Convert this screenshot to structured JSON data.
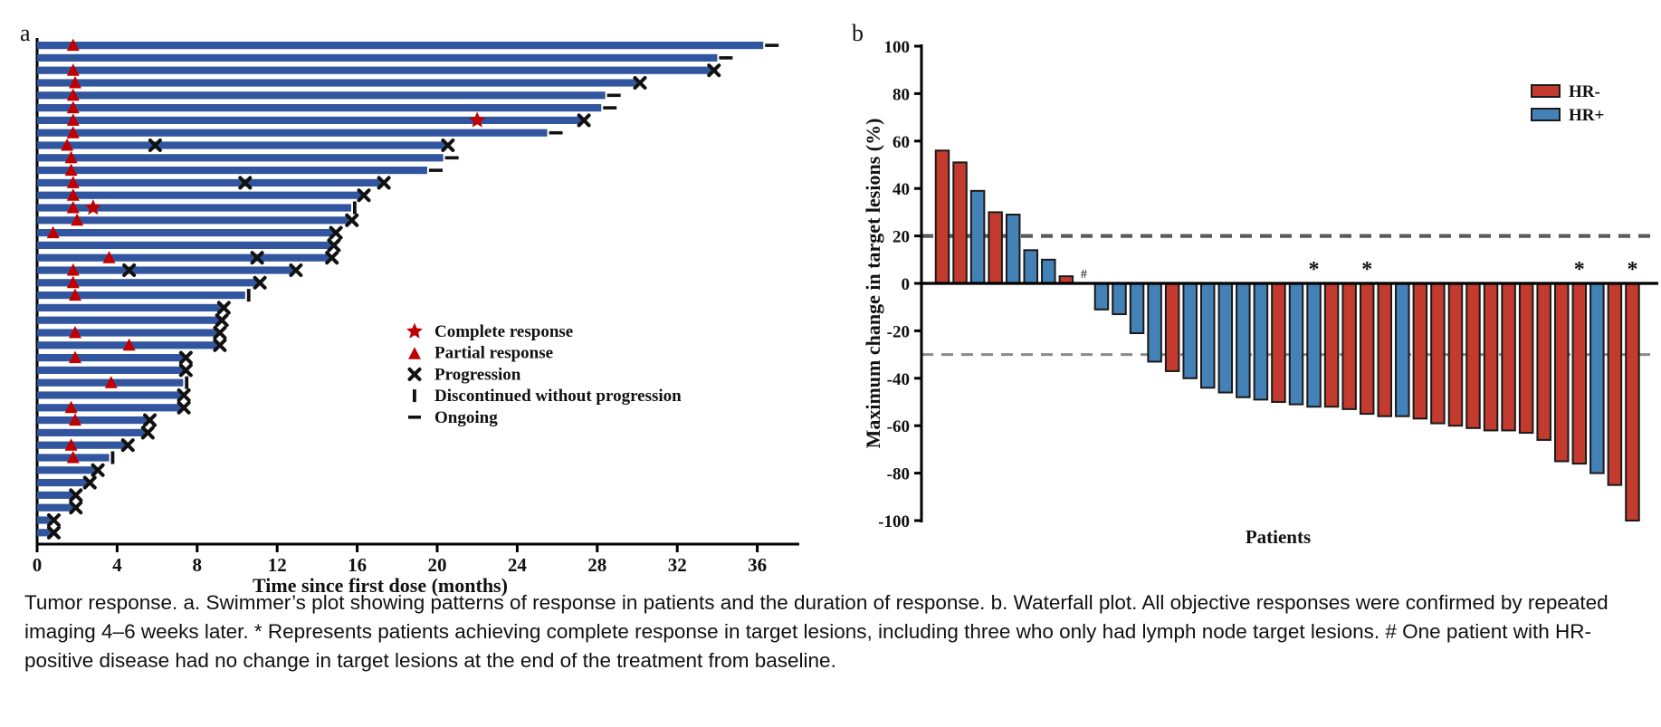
{
  "figure": {
    "panel_a_label": "a",
    "panel_b_label": "b",
    "caption": "Tumor response. a. Swimmer’s plot showing patterns of response in patients and the duration of response. b. Waterfall plot. All objective responses were confirmed by repeated imaging 4–6 weeks later. * Represents patients achieving complete response in target lesions, including three who only had lymph node target lesions. # One patient with HR-positive disease had no change in target lesions at the end of the treatment from baseline."
  },
  "chart_data": [
    {
      "type": "bar",
      "subtype": "swimmer",
      "xlabel": "Time since first dose (months)",
      "xlim": [
        0,
        38
      ],
      "xticks": [
        0,
        4,
        8,
        12,
        16,
        20,
        24,
        28,
        32,
        36
      ],
      "bar_color": "#31569f",
      "marker_red": "#c00000",
      "marker_black": "#111111",
      "legend": [
        {
          "symbol": "star",
          "label": "Complete response"
        },
        {
          "symbol": "triangle",
          "label": "Partial response"
        },
        {
          "symbol": "x",
          "label": "Progression"
        },
        {
          "symbol": "vbar",
          "label": "Discontinued without progression"
        },
        {
          "symbol": "dash",
          "label": "Ongoing"
        }
      ],
      "patients": [
        {
          "duration": 36.3,
          "pr": 1.8,
          "end": "ongoing"
        },
        {
          "duration": 34.0,
          "end": "ongoing"
        },
        {
          "duration": 33.7,
          "pr": 1.8,
          "end": "progression"
        },
        {
          "duration": 30.0,
          "pr": 1.9,
          "end": "progression"
        },
        {
          "duration": 28.4,
          "pr": 1.8,
          "end": "ongoing"
        },
        {
          "duration": 28.2,
          "pr": 1.8,
          "end": "ongoing"
        },
        {
          "duration": 27.2,
          "pr": 1.8,
          "cr": 22.0,
          "end": "progression"
        },
        {
          "duration": 25.5,
          "pr": 1.8,
          "end": "ongoing"
        },
        {
          "duration": 20.4,
          "pr": 1.5,
          "x_mid": [
            5.9
          ],
          "end": "progression"
        },
        {
          "duration": 20.3,
          "pr": 1.7,
          "end": "ongoing"
        },
        {
          "duration": 19.5,
          "pr": 1.7,
          "end": "ongoing"
        },
        {
          "duration": 17.2,
          "pr": 1.8,
          "x_mid": [
            10.4
          ],
          "end": "progression"
        },
        {
          "duration": 16.2,
          "pr": 1.8,
          "end": "progression"
        },
        {
          "duration": 15.7,
          "pr": 1.8,
          "cr": 2.8,
          "end": "discontinued"
        },
        {
          "duration": 15.6,
          "pr": 2.0,
          "end": "progression"
        },
        {
          "duration": 14.8,
          "pr": 0.8,
          "end": "progression"
        },
        {
          "duration": 14.7,
          "end": "progression"
        },
        {
          "duration": 14.6,
          "pr": 3.6,
          "x_mid": [
            11.0
          ],
          "end": "progression"
        },
        {
          "duration": 12.8,
          "pr": 1.8,
          "x_mid": [
            4.6
          ],
          "end": "progression"
        },
        {
          "duration": 11.0,
          "pr": 1.8,
          "end": "progression"
        },
        {
          "duration": 10.4,
          "pr": 1.9,
          "end": "discontinued"
        },
        {
          "duration": 9.2,
          "end": "progression"
        },
        {
          "duration": 9.1,
          "end": "progression"
        },
        {
          "duration": 9.0,
          "pr": 1.9,
          "end": "progression"
        },
        {
          "duration": 9.0,
          "pr": 4.6,
          "end": "progression"
        },
        {
          "duration": 7.3,
          "pr": 1.9,
          "end": "progression"
        },
        {
          "duration": 7.3,
          "end": "progression"
        },
        {
          "duration": 7.3,
          "pr": 3.7,
          "end": "discontinued"
        },
        {
          "duration": 7.2,
          "end": "progression"
        },
        {
          "duration": 7.2,
          "pr": 1.7,
          "end": "progression"
        },
        {
          "duration": 5.5,
          "pr": 1.9,
          "end": "progression"
        },
        {
          "duration": 5.4,
          "end": "progression"
        },
        {
          "duration": 4.4,
          "pr": 1.7,
          "end": "progression"
        },
        {
          "duration": 3.6,
          "pr": 1.8,
          "end": "discontinued"
        },
        {
          "duration": 2.9,
          "end": "progression"
        },
        {
          "duration": 2.5,
          "end": "progression"
        },
        {
          "duration": 1.8,
          "end": "progression"
        },
        {
          "duration": 1.8,
          "end": "progression"
        },
        {
          "duration": 0.7,
          "end": "progression"
        },
        {
          "duration": 0.7,
          "end": "progression"
        }
      ]
    },
    {
      "type": "bar",
      "subtype": "waterfall",
      "ylabel": "Maximum change in target lesions (%)",
      "xlabel": "Patients",
      "ylim": [
        -100,
        100
      ],
      "yticks": [
        100,
        80,
        60,
        40,
        20,
        0,
        -20,
        -40,
        -60,
        -80,
        -100
      ],
      "reference_lines": [
        20,
        -30
      ],
      "hash_symbol": "#",
      "star_symbol": "*",
      "legend": [
        {
          "label": "HR-",
          "color": "#c23b2e"
        },
        {
          "label": "HR+",
          "color": "#4381b6"
        }
      ],
      "bars": [
        {
          "value": 56,
          "group": "HR-"
        },
        {
          "value": 51,
          "group": "HR-"
        },
        {
          "value": 39,
          "group": "HR+"
        },
        {
          "value": 30,
          "group": "HR-"
        },
        {
          "value": 29,
          "group": "HR+"
        },
        {
          "value": 14,
          "group": "HR+"
        },
        {
          "value": 10,
          "group": "HR+"
        },
        {
          "value": 3,
          "group": "HR-"
        },
        {
          "value": 0,
          "group": "HR+",
          "hash": true
        },
        {
          "value": -11,
          "group": "HR+"
        },
        {
          "value": -13,
          "group": "HR+"
        },
        {
          "value": -21,
          "group": "HR+"
        },
        {
          "value": -33,
          "group": "HR+"
        },
        {
          "value": -37,
          "group": "HR-"
        },
        {
          "value": -40,
          "group": "HR+"
        },
        {
          "value": -44,
          "group": "HR+"
        },
        {
          "value": -46,
          "group": "HR+"
        },
        {
          "value": -48,
          "group": "HR+"
        },
        {
          "value": -49,
          "group": "HR+"
        },
        {
          "value": -50,
          "group": "HR-"
        },
        {
          "value": -51,
          "group": "HR+"
        },
        {
          "value": -52,
          "group": "HR+",
          "star": true
        },
        {
          "value": -52,
          "group": "HR-"
        },
        {
          "value": -53,
          "group": "HR-"
        },
        {
          "value": -55,
          "group": "HR-",
          "star": true
        },
        {
          "value": -56,
          "group": "HR-"
        },
        {
          "value": -56,
          "group": "HR+"
        },
        {
          "value": -57,
          "group": "HR-"
        },
        {
          "value": -59,
          "group": "HR-"
        },
        {
          "value": -60,
          "group": "HR-"
        },
        {
          "value": -61,
          "group": "HR-"
        },
        {
          "value": -62,
          "group": "HR-"
        },
        {
          "value": -62,
          "group": "HR-"
        },
        {
          "value": -63,
          "group": "HR-"
        },
        {
          "value": -66,
          "group": "HR-"
        },
        {
          "value": -75,
          "group": "HR-"
        },
        {
          "value": -76,
          "group": "HR-",
          "star": true
        },
        {
          "value": -80,
          "group": "HR+"
        },
        {
          "value": -85,
          "group": "HR-"
        },
        {
          "value": -100,
          "group": "HR-",
          "star": true
        }
      ]
    }
  ]
}
